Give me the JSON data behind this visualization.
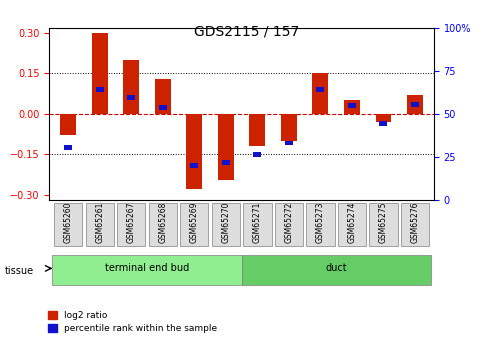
{
  "title": "GDS2115 / 157",
  "samples": [
    "GSM65260",
    "GSM65261",
    "GSM65267",
    "GSM65268",
    "GSM65269",
    "GSM65270",
    "GSM65271",
    "GSM65272",
    "GSM65273",
    "GSM65274",
    "GSM65275",
    "GSM65276"
  ],
  "log2_ratio": [
    -0.08,
    0.3,
    0.2,
    0.13,
    -0.28,
    -0.245,
    -0.12,
    -0.1,
    0.15,
    0.05,
    -0.03,
    0.07
  ],
  "percentile_rank": [
    29,
    65,
    60,
    54,
    18,
    20,
    25,
    32,
    65,
    55,
    44,
    56
  ],
  "tissue_groups": [
    {
      "label": "terminal end bud",
      "start": 0,
      "end": 6,
      "color": "#90EE90"
    },
    {
      "label": "duct",
      "start": 6,
      "end": 12,
      "color": "#66CC66"
    }
  ],
  "ylim": [
    -0.32,
    0.32
  ],
  "yticks_left": [
    -0.3,
    -0.15,
    0,
    0.15,
    0.3
  ],
  "yticks_right": [
    0,
    25,
    50,
    75,
    100
  ],
  "bar_color_red": "#CC2200",
  "bar_color_blue": "#1111CC",
  "zero_line_color": "#CC0000",
  "grid_color": "#000000",
  "bar_width": 0.5,
  "blue_bar_width": 0.25,
  "blue_bar_height": 0.018
}
